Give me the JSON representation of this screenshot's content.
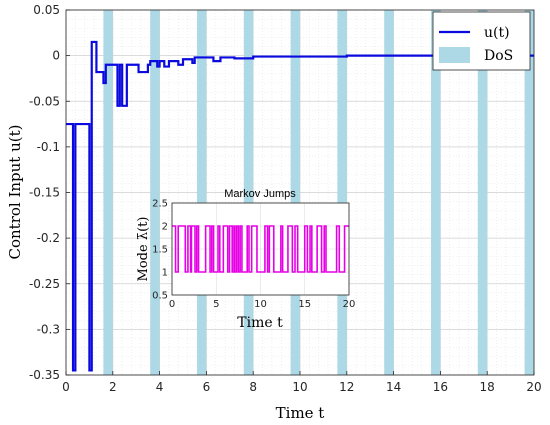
{
  "chart_data": [
    {
      "type": "line",
      "xlabel": "Time t",
      "ylabel": "Control Input u(t)",
      "xlim": [
        0,
        20
      ],
      "ylim": [
        -0.35,
        0.05
      ],
      "xticks": [
        "0",
        "2",
        "4",
        "6",
        "8",
        "10",
        "12",
        "14",
        "16",
        "18",
        "20"
      ],
      "yticks": [
        "0.05",
        "0",
        "-0.05",
        "-0.1",
        "-0.15",
        "-0.2",
        "-0.25",
        "-0.3",
        "-0.35"
      ],
      "grid": true,
      "minor_grid": true,
      "legend_position": "top-right",
      "legend": [
        "u(t)",
        "DoS"
      ],
      "colors": {
        "line": "#0a0adf",
        "dos": "#add8e6",
        "grid": "#d9d9d9"
      },
      "dos_intervals": [
        [
          1.6,
          2.0
        ],
        [
          3.6,
          4.0
        ],
        [
          5.6,
          6.0
        ],
        [
          7.6,
          8.0
        ],
        [
          9.6,
          10.0
        ],
        [
          11.6,
          12.0
        ],
        [
          13.6,
          14.0
        ],
        [
          15.6,
          16.0
        ],
        [
          17.6,
          18.0
        ],
        [
          19.6,
          20.0
        ]
      ],
      "series": [
        {
          "name": "u(t)",
          "x": [
            0,
            0.3,
            0.3,
            0.4,
            0.4,
            1.0,
            1.0,
            1.1,
            1.1,
            1.3,
            1.3,
            1.6,
            1.6,
            1.7,
            1.7,
            2.2,
            2.2,
            2.3,
            2.3,
            2.4,
            2.4,
            2.6,
            2.6,
            2.7,
            2.7,
            3.0,
            3.0,
            3.1,
            3.1,
            3.5,
            3.5,
            3.6,
            3.6,
            3.9,
            3.9,
            4.0,
            4.0,
            4.2,
            4.2,
            4.4,
            4.4,
            4.8,
            4.8,
            5.0,
            5.0,
            5.4,
            5.4,
            5.5,
            5.5,
            6.3,
            6.3,
            6.6,
            6.6,
            7.2,
            7.2,
            8.0,
            8.0,
            12.0,
            12.0,
            20.0
          ],
          "y": [
            -0.075,
            -0.075,
            -0.345,
            -0.345,
            -0.075,
            -0.075,
            -0.345,
            -0.345,
            0.015,
            0.015,
            -0.018,
            -0.018,
            -0.03,
            -0.03,
            -0.01,
            -0.01,
            -0.055,
            -0.055,
            -0.01,
            -0.01,
            -0.055,
            -0.055,
            -0.01,
            -0.01,
            -0.01,
            -0.01,
            -0.01,
            -0.01,
            -0.018,
            -0.018,
            -0.01,
            -0.01,
            -0.006,
            -0.006,
            -0.012,
            -0.012,
            -0.006,
            -0.006,
            -0.012,
            -0.012,
            -0.006,
            -0.006,
            -0.01,
            -0.01,
            -0.004,
            -0.004,
            -0.008,
            -0.008,
            -0.002,
            -0.002,
            -0.006,
            -0.006,
            -0.002,
            -0.002,
            -0.003,
            -0.003,
            -0.001,
            -0.001,
            0,
            0
          ]
        }
      ]
    },
    {
      "type": "line",
      "title": "Markov Jumps",
      "xlabel": "Time t",
      "ylabel": "Mode λ̄(t)",
      "xlim": [
        0,
        20
      ],
      "ylim": [
        0.5,
        2.5
      ],
      "xticks": [
        "0",
        "5",
        "10",
        "15",
        "20"
      ],
      "yticks": [
        "2.5",
        "2",
        "1.5",
        "1",
        "0.5"
      ],
      "grid": true,
      "colors": {
        "line": "#e600e6"
      },
      "series": [
        {
          "x": [
            0,
            0.4,
            0.4,
            0.7,
            0.7,
            1.5,
            1.5,
            1.8,
            1.8,
            2.1,
            2.1,
            2.2,
            2.2,
            2.6,
            2.6,
            2.8,
            2.8,
            3.0,
            3.0,
            3.8,
            3.8,
            4.3,
            4.3,
            4.5,
            4.5,
            4.7,
            4.7,
            5.2,
            5.2,
            5.4,
            5.4,
            5.8,
            5.8,
            6.3,
            6.3,
            6.5,
            6.5,
            6.8,
            6.8,
            7.0,
            7.0,
            7.1,
            7.1,
            7.3,
            7.3,
            7.5,
            7.5,
            7.7,
            7.7,
            7.9,
            7.9,
            8.5,
            8.5,
            8.7,
            8.7,
            9.0,
            9.0,
            9.6,
            9.6,
            10.5,
            10.5,
            10.8,
            10.8,
            11.0,
            11.0,
            11.5,
            11.5,
            12.3,
            12.3,
            12.5,
            12.5,
            13.1,
            13.1,
            13.6,
            13.6,
            13.9,
            13.9,
            14.2,
            14.2,
            15.0,
            15.0,
            15.3,
            15.3,
            15.6,
            15.6,
            15.8,
            15.8,
            16.4,
            16.4,
            16.9,
            16.9,
            17.2,
            17.2,
            17.4,
            17.4,
            18.6,
            18.6,
            18.9,
            18.9,
            19.5,
            19.5,
            20.0
          ],
          "y": [
            2,
            2,
            1,
            1,
            2,
            2,
            1,
            1,
            2,
            2,
            1,
            1,
            2,
            2,
            1,
            1,
            2,
            2,
            1,
            1,
            2,
            2,
            1,
            1,
            2,
            2,
            1,
            1,
            2,
            2,
            1,
            1,
            2,
            2,
            1,
            1,
            2,
            2,
            1,
            1,
            2,
            2,
            1,
            1,
            2,
            2,
            1,
            1,
            2,
            2,
            1,
            1,
            2,
            2,
            1,
            1,
            2,
            2,
            1,
            1,
            2,
            2,
            1,
            1,
            2,
            2,
            1,
            1,
            2,
            2,
            1,
            1,
            2,
            2,
            1,
            1,
            2,
            2,
            1,
            1,
            2,
            2,
            1,
            1,
            2,
            2,
            1,
            1,
            2,
            2,
            1,
            1,
            2,
            2,
            1,
            1,
            2,
            2,
            1,
            1,
            2,
            2
          ]
        }
      ]
    }
  ]
}
